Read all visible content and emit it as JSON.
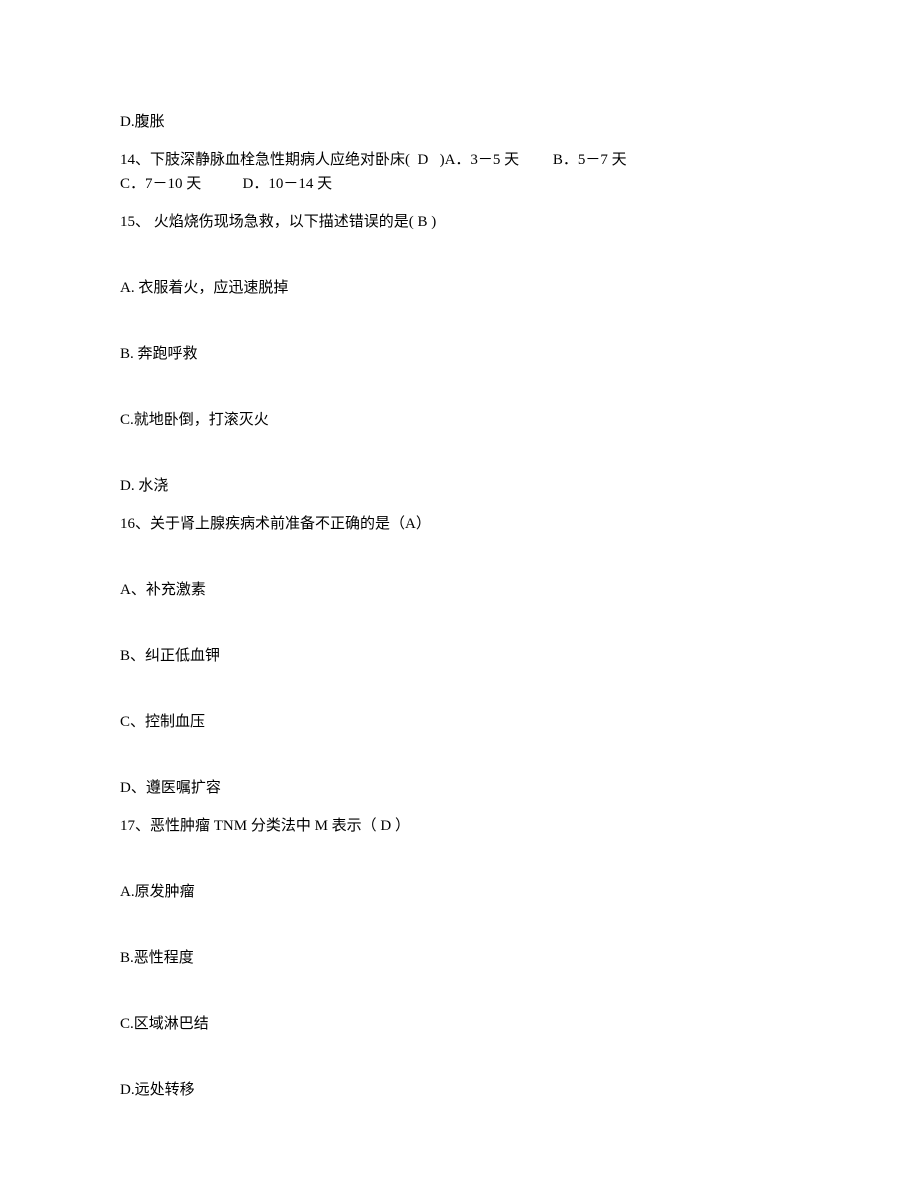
{
  "q13_option_d": "D.腹胀",
  "q14": {
    "number": "14、",
    "stem": "下肢深静脉血栓急性期病人应绝对卧床(  D   )A．3－5 天         B．5－7 天",
    "line2": "C．7－10 天           D．10－14 天"
  },
  "q15": {
    "number": "15、 ",
    "stem": "火焰烧伤现场急救，以下描述错误的是( B )",
    "a": "A. 衣服着火，应迅速脱掉",
    "b": "B. 奔跑呼救",
    "c": "C.就地卧倒，打滚灭火",
    "d": "D. 水浇"
  },
  "q16": {
    "number": "16、",
    "stem": "关于肾上腺疾病术前准备不正确的是（A）",
    "a": "A、补充激素",
    "b": "B、纠正低血钾",
    "c": "C、控制血压",
    "d": "D、遵医嘱扩容"
  },
  "q17": {
    "number": "17、",
    "stem": "恶性肿瘤 TNM 分类法中 M 表示（ D ）",
    "a": "A.原发肿瘤",
    "b": "B.恶性程度",
    "c": "C.区域淋巴结",
    "d": "D.远处转移"
  }
}
